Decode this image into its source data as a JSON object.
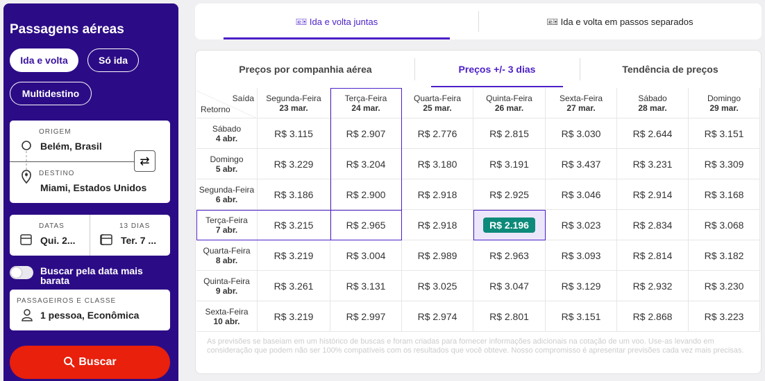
{
  "sidebar": {
    "title": "Passagens aéreas",
    "trip_types": [
      "Ida e volta",
      "Só ida",
      "Multidestino"
    ],
    "origin_label": "ORIGEM",
    "origin": "Belém, Brasil",
    "destination_label": "DESTINO",
    "destination": "Miami, Estados Unidos",
    "dates_label": "DATAS",
    "departure": "Qui. 2...",
    "duration_label": "13 DIAS",
    "return": "Ter. 7 ...",
    "flexible": "Buscar pela data mais barata",
    "passengers_label": "PASSAGEIROS E CLASSE",
    "passengers": "1 pessoa, Econômica",
    "search": "Buscar"
  },
  "top_tabs": [
    "Ida e volta juntas",
    "Ida e volta em passos separados"
  ],
  "tabs": [
    "Preços por companhia aérea",
    "Preços +/- 3 dias",
    "Tendência de preços"
  ],
  "table": {
    "corner_top": "Saída",
    "corner_bottom": "Retorno",
    "columns": [
      {
        "day": "Segunda-Feira",
        "date": "23 mar."
      },
      {
        "day": "Terça-Feira",
        "date": "24 mar."
      },
      {
        "day": "Quarta-Feira",
        "date": "25 mar."
      },
      {
        "day": "Quinta-Feira",
        "date": "26 mar."
      },
      {
        "day": "Sexta-Feira",
        "date": "27 mar."
      },
      {
        "day": "Sábado",
        "date": "28 mar."
      },
      {
        "day": "Domingo",
        "date": "29 mar."
      }
    ],
    "rows": [
      {
        "day": "Sábado",
        "date": "4 abr.",
        "prices": [
          "R$ 3.115",
          "R$ 2.907",
          "R$ 2.776",
          "R$ 2.815",
          "R$ 3.030",
          "R$ 2.644",
          "R$ 3.151"
        ]
      },
      {
        "day": "Domingo",
        "date": "5 abr.",
        "prices": [
          "R$ 3.229",
          "R$ 3.204",
          "R$ 3.180",
          "R$ 3.191",
          "R$ 3.437",
          "R$ 3.231",
          "R$ 3.309"
        ]
      },
      {
        "day": "Segunda-Feira",
        "date": "6 abr.",
        "prices": [
          "R$ 3.186",
          "R$ 2.900",
          "R$ 2.918",
          "R$ 2.925",
          "R$ 3.046",
          "R$ 2.914",
          "R$ 3.168"
        ]
      },
      {
        "day": "Terça-Feira",
        "date": "7 abr.",
        "prices": [
          "R$ 3.215",
          "R$ 2.965",
          "R$ 2.918",
          "R$ 2.196",
          "R$ 3.023",
          "R$ 2.834",
          "R$ 3.068"
        ]
      },
      {
        "day": "Quarta-Feira",
        "date": "8 abr.",
        "prices": [
          "R$ 3.219",
          "R$ 3.004",
          "R$ 2.989",
          "R$ 2.963",
          "R$ 3.093",
          "R$ 2.814",
          "R$ 3.182"
        ]
      },
      {
        "day": "Quinta-Feira",
        "date": "9 abr.",
        "prices": [
          "R$ 3.261",
          "R$ 3.131",
          "R$ 3.025",
          "R$ 3.047",
          "R$ 3.129",
          "R$ 2.932",
          "R$ 3.230"
        ]
      },
      {
        "day": "Sexta-Feira",
        "date": "10 abr.",
        "prices": [
          "R$ 3.219",
          "R$ 2.997",
          "R$ 2.974",
          "R$ 2.801",
          "R$ 3.151",
          "R$ 2.868",
          "R$ 3.223"
        ]
      }
    ]
  },
  "footnote": "As previsões se baseiam em um histórico de buscas e foram criadas para fornecer informações adicionais na cotação de um voo. Use-as levando em consideração que podem não ser 100% compatíveis com os resultados que você obteve. Nosso compromisso é apresentar previsões cada vez mais precisas."
}
